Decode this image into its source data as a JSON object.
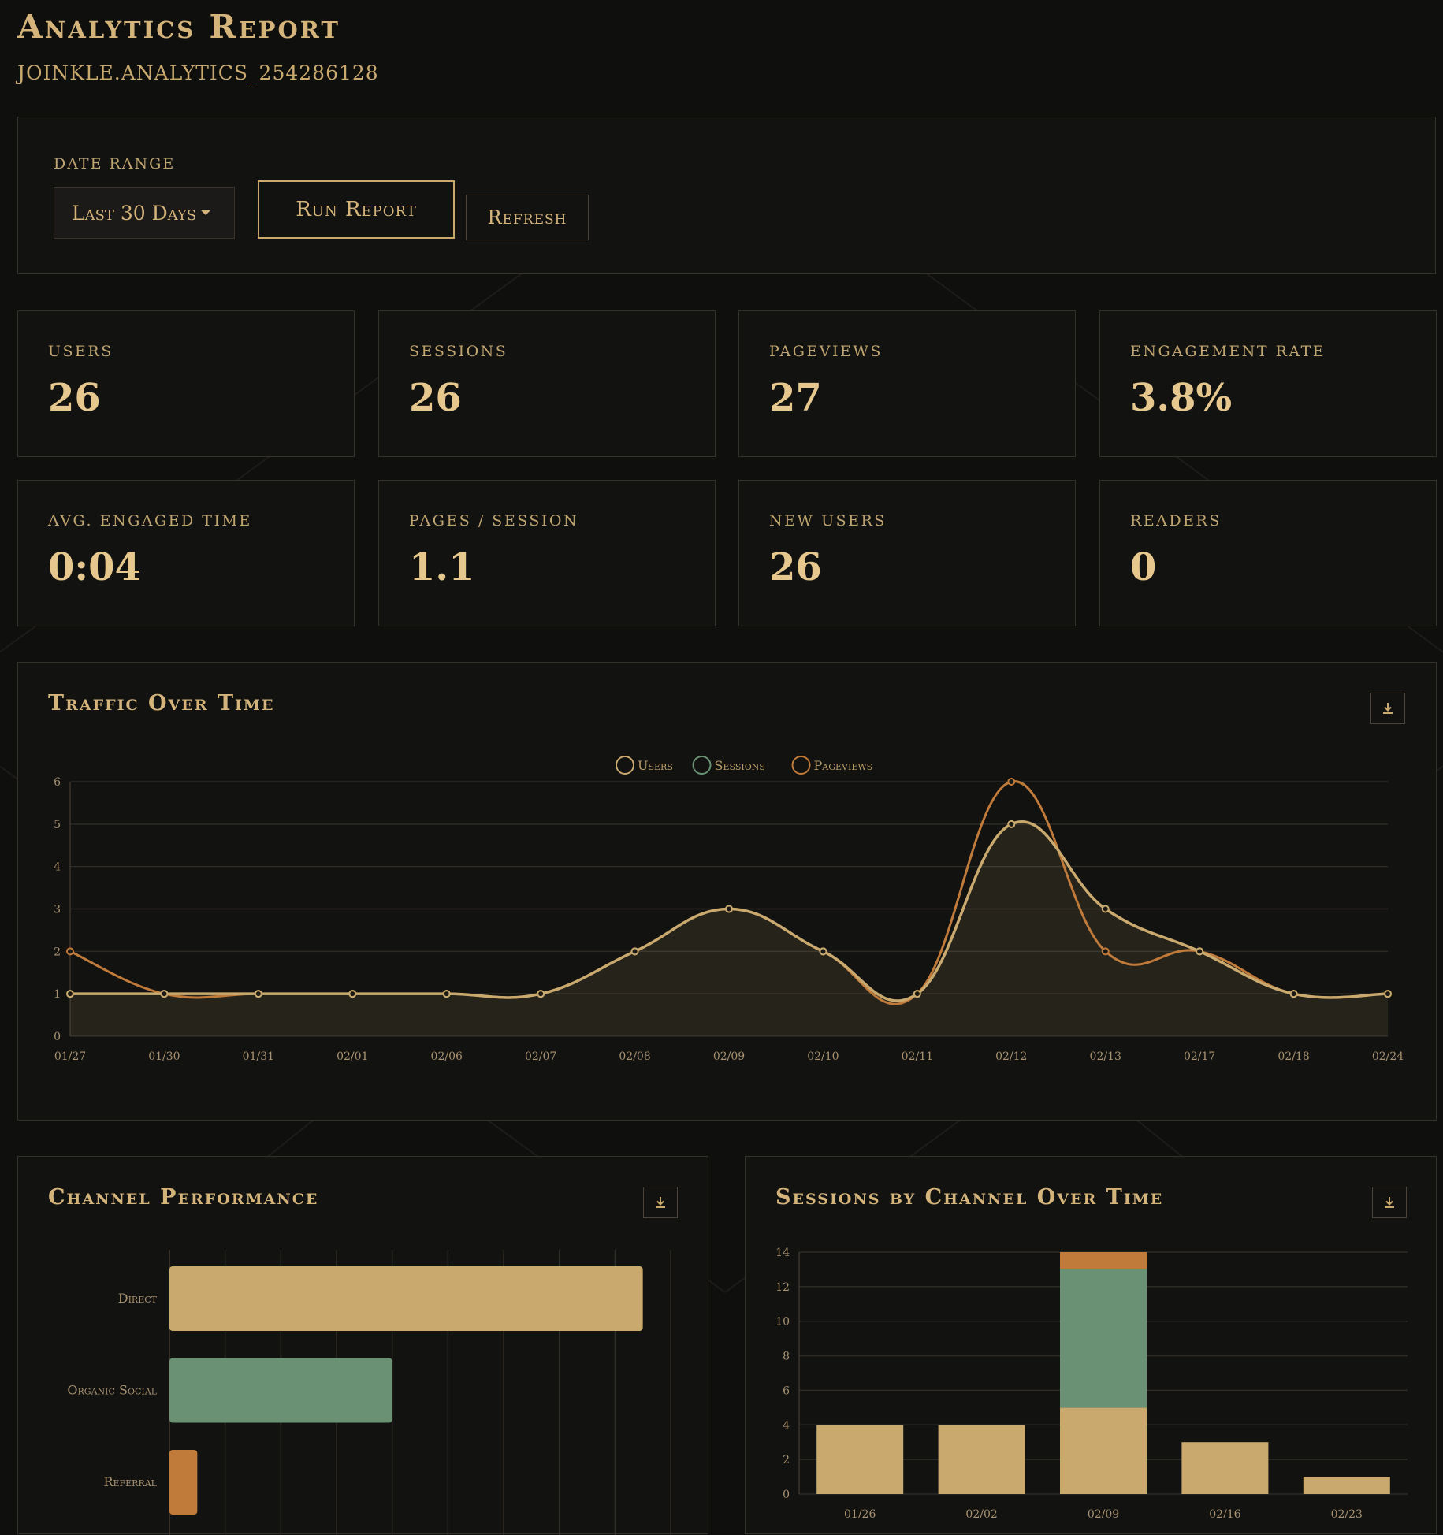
{
  "header": {
    "title": "Analytics Report",
    "property_id": "JOINKLE.ANALYTICS_254286128"
  },
  "controls": {
    "date_range_label": "Date Range",
    "date_range_value": "Last 30 Days",
    "run_report_label": "Run Report",
    "refresh_label": "Refresh"
  },
  "stats": [
    {
      "label": "Users",
      "value": "26"
    },
    {
      "label": "Sessions",
      "value": "26"
    },
    {
      "label": "Pageviews",
      "value": "27"
    },
    {
      "label": "Engagement Rate",
      "value": "3.8%"
    },
    {
      "label": "Avg. Engaged Time",
      "value": "0:04"
    },
    {
      "label": "Pages / Session",
      "value": "1.1"
    },
    {
      "label": "New Users",
      "value": "26"
    },
    {
      "label": "Readers",
      "value": "0"
    }
  ],
  "charts": {
    "traffic": {
      "title": "Traffic Over Time"
    },
    "channel": {
      "title": "Channel Performance"
    },
    "sessions_channel": {
      "title": "Sessions by Channel Over Time"
    }
  },
  "icons": {
    "download": "download-icon"
  },
  "colors": {
    "gold": "#c9a96e",
    "green": "#6a9174",
    "orange": "#c07a3a",
    "background": "#0f0f0e"
  },
  "chart_data": [
    {
      "type": "line",
      "title": "Traffic Over Time",
      "categories": [
        "01/27",
        "01/30",
        "01/31",
        "02/01",
        "02/06",
        "02/07",
        "02/08",
        "02/09",
        "02/10",
        "02/11",
        "02/12",
        "02/13",
        "02/17",
        "02/18",
        "02/24"
      ],
      "series": [
        {
          "name": "Users",
          "color": "#c9a96e",
          "values": [
            1,
            1,
            1,
            1,
            1,
            1,
            2,
            3,
            2,
            1,
            5,
            3,
            2,
            1,
            1
          ]
        },
        {
          "name": "Sessions",
          "color": "#6a9174",
          "values": [
            1,
            1,
            1,
            1,
            1,
            1,
            2,
            3,
            2,
            1,
            5,
            3,
            2,
            1,
            1
          ]
        },
        {
          "name": "Pageviews",
          "color": "#c07a3a",
          "values": [
            2,
            1,
            1,
            1,
            1,
            1,
            2,
            3,
            2,
            1,
            6,
            2,
            2,
            1,
            1
          ]
        }
      ],
      "yticks": [
        "0",
        "1",
        "2",
        "3",
        "4",
        "5",
        "6"
      ],
      "ylim": [
        0,
        6
      ],
      "legend": "top-center",
      "grid": true
    },
    {
      "type": "bar",
      "title": "Channel Performance",
      "orientation": "horizontal",
      "categories": [
        "Direct",
        "Organic Social",
        "Referral"
      ],
      "values": [
        17,
        8,
        1
      ],
      "colors": [
        "#c9a96e",
        "#6a9174",
        "#c07a3a"
      ],
      "xlim": [
        0,
        18
      ]
    },
    {
      "type": "bar",
      "title": "Sessions by Channel Over Time",
      "stacked": true,
      "categories": [
        "01/26",
        "02/02",
        "02/09",
        "02/16",
        "02/23"
      ],
      "series": [
        {
          "color": "#c9a96e",
          "values": [
            4,
            4,
            5,
            3,
            1
          ]
        },
        {
          "color": "#6a9174",
          "values": [
            0,
            0,
            8,
            0,
            0
          ]
        },
        {
          "color": "#c07a3a",
          "values": [
            0,
            0,
            1,
            0,
            0
          ]
        }
      ],
      "yticks": [
        "0",
        "2",
        "4",
        "6",
        "8",
        "10",
        "12",
        "14"
      ],
      "ylim": [
        0,
        14
      ]
    }
  ]
}
